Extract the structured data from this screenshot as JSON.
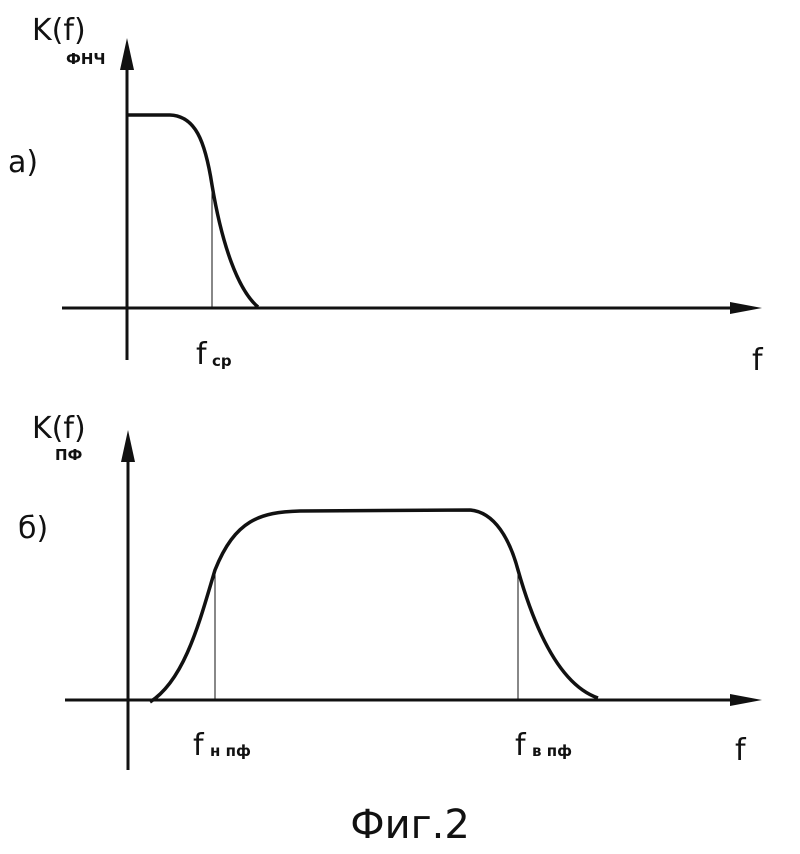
{
  "panels": [
    {
      "label": "а)",
      "y_axis_label": {
        "symbol": "K(f)",
        "subscript": "ФНЧ"
      },
      "x_axis_label": "f",
      "markers": [
        {
          "symbol": "f",
          "subscript": "ср"
        }
      ]
    },
    {
      "label": "б)",
      "y_axis_label": {
        "symbol": "K(f)",
        "subscript": "ПФ"
      },
      "x_axis_label": "f",
      "markers": [
        {
          "symbol": "f",
          "subscript": "н пф"
        },
        {
          "symbol": "f",
          "subscript": "в пф"
        }
      ]
    }
  ],
  "caption": "Фиг.2"
}
